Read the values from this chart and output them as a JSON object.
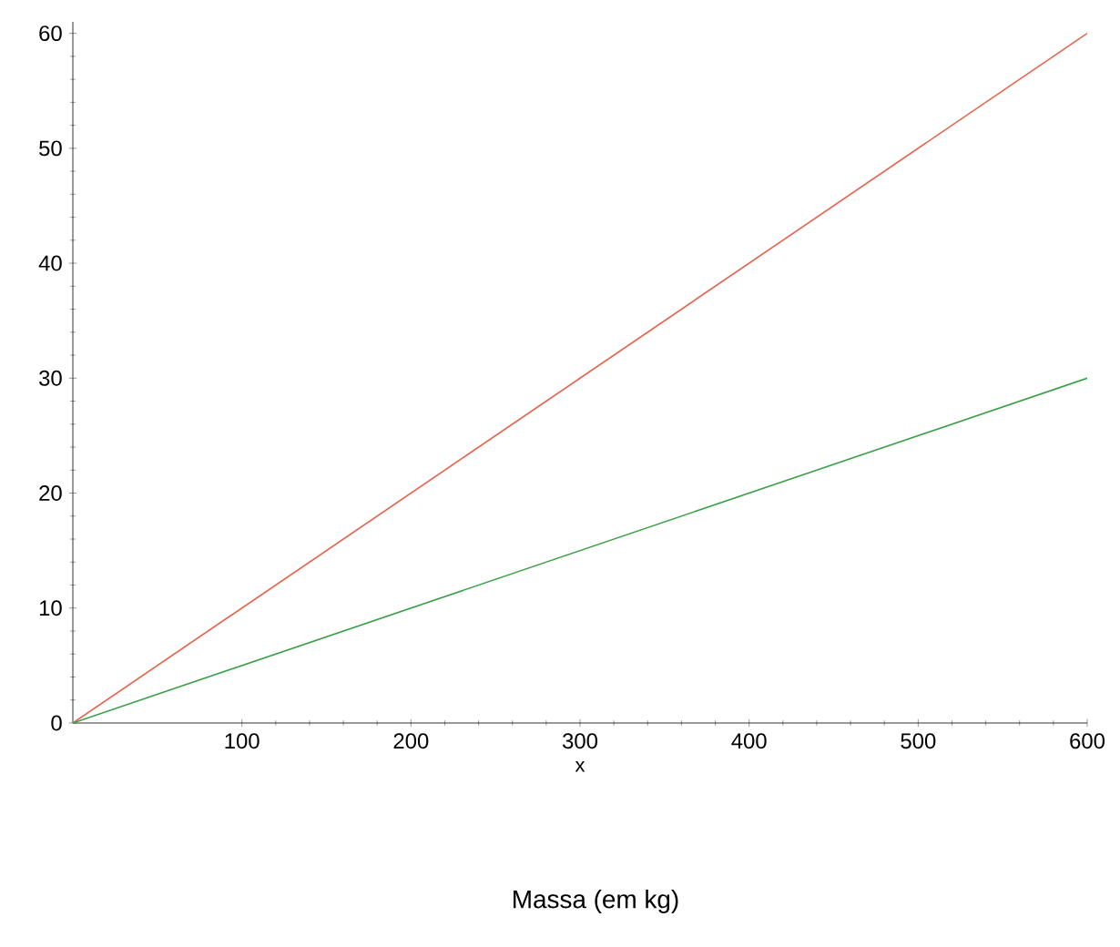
{
  "chart_data": {
    "type": "line",
    "xlabel": "x",
    "annotations": [
      "Massa (em kg)"
    ],
    "x": [
      0,
      600
    ],
    "series": [
      {
        "color": "#e8604a",
        "values": [
          0,
          60
        ]
      },
      {
        "color": "#3aa047",
        "values": [
          0,
          30
        ]
      }
    ],
    "xlim": [
      0,
      600
    ],
    "ylim": [
      0,
      61
    ],
    "xticks": [
      100,
      200,
      300,
      400,
      500,
      600
    ],
    "yticks": [
      0,
      10,
      20,
      30,
      40,
      50,
      60
    ],
    "grid": false,
    "marker": "none",
    "line_style": "solid"
  }
}
